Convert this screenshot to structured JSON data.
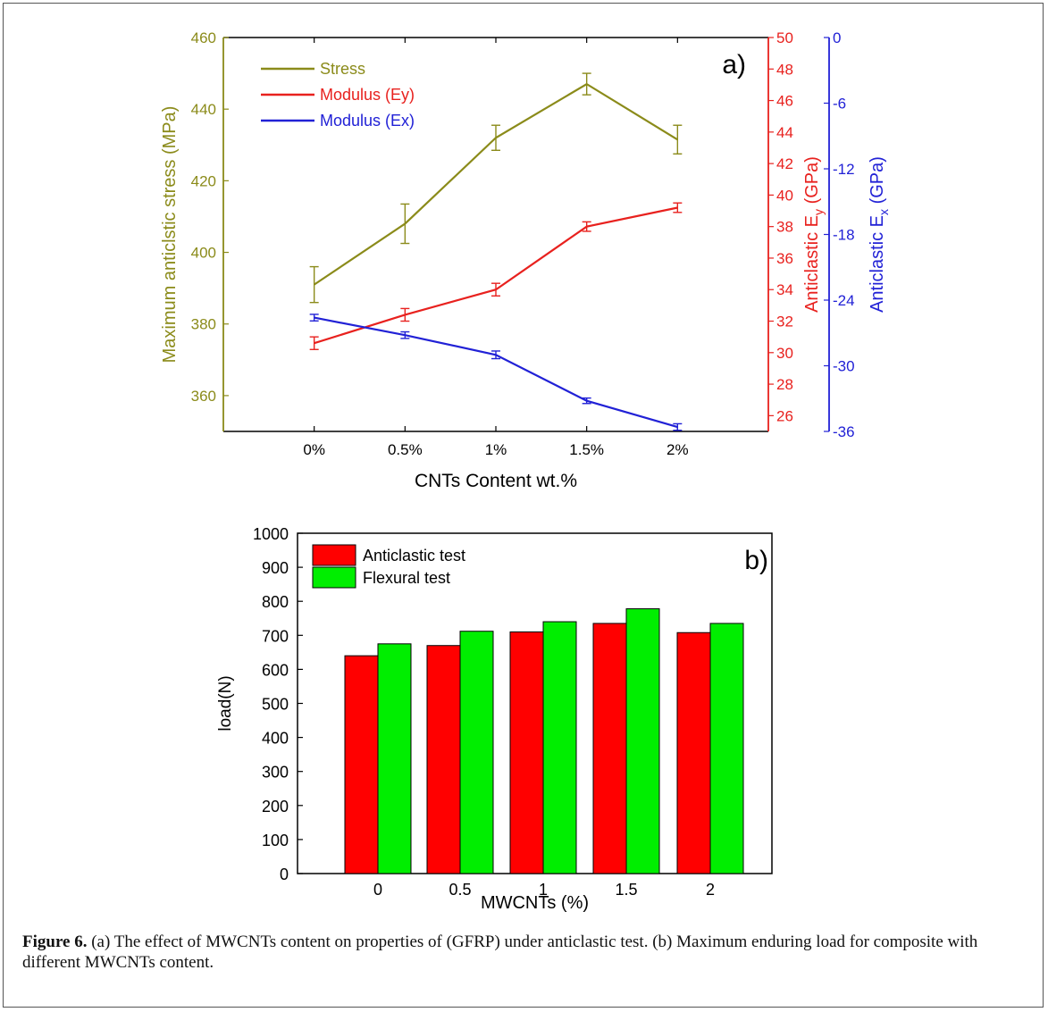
{
  "caption": {
    "label": "Figure 6.",
    "text": " (a) The effect of MWCNTs content on properties of (GFRP) under anticlastic test. (b) Maximum enduring load for composite with different MWCNTs content."
  },
  "chart_data": [
    {
      "type": "line",
      "panel_label": "a)",
      "xlabel": "CNTs Content wt.%",
      "categories": [
        "0%",
        "0.5%",
        "1%",
        "1.5%",
        "2%"
      ],
      "axes": {
        "left": {
          "label": "Maximum anticlstic stress (MPa)",
          "ylim": [
            350,
            460
          ],
          "ticks": [
            360,
            380,
            400,
            420,
            440,
            460
          ],
          "color": "#8b8b1a"
        },
        "right1": {
          "label_main": "Anticlastic E",
          "label_sub": "y",
          "label_tail": " (GPa)",
          "ylim": [
            25,
            50
          ],
          "ticks": [
            26,
            28,
            30,
            32,
            34,
            36,
            38,
            40,
            42,
            44,
            46,
            48,
            50
          ],
          "color": "#e8211e"
        },
        "right2": {
          "label_main": "Anticlastic E",
          "label_sub": "x",
          "label_tail": " (GPa)",
          "ylim": [
            -36,
            0
          ],
          "ticks": [
            -36,
            -30,
            -24,
            -18,
            -12,
            -6,
            0
          ],
          "color": "#2121d6"
        }
      },
      "series": [
        {
          "name": "Stress",
          "axis": "left",
          "color": "#8b8b1a",
          "values": [
            391,
            408,
            432,
            447,
            431.5
          ],
          "errors": [
            5,
            5.5,
            3.5,
            3,
            4
          ]
        },
        {
          "name": "Modulus (Ey)",
          "axis": "right1",
          "color": "#e8211e",
          "values": [
            30.6,
            32.4,
            34.0,
            38.0,
            39.2
          ],
          "errors": [
            0.4,
            0.4,
            0.4,
            0.3,
            0.3
          ]
        },
        {
          "name": "Modulus (Ex)",
          "axis": "right2",
          "color": "#2121d6",
          "values": [
            -25.6,
            -27.2,
            -29.0,
            -33.2,
            -35.6
          ],
          "errors": [
            0.3,
            0.3,
            0.35,
            0.25,
            0.3
          ]
        }
      ],
      "legend_position": "top-left",
      "grid": false
    },
    {
      "type": "bar",
      "panel_label": "b)",
      "xlabel": "MWCNTs (%)",
      "ylabel": "load(N)",
      "categories": [
        "0",
        "0.5",
        "1",
        "1.5",
        "2"
      ],
      "ylim": [
        0,
        1000
      ],
      "yticks": [
        0,
        100,
        200,
        300,
        400,
        500,
        600,
        700,
        800,
        900,
        1000
      ],
      "series": [
        {
          "name": "Anticlastic test",
          "color": "#ff0000",
          "values": [
            640,
            670,
            710,
            735,
            708
          ]
        },
        {
          "name": "Flexural test",
          "color": "#00ee00",
          "values": [
            675,
            712,
            740,
            778,
            735
          ]
        }
      ],
      "legend_position": "top-left",
      "grid": false
    }
  ]
}
